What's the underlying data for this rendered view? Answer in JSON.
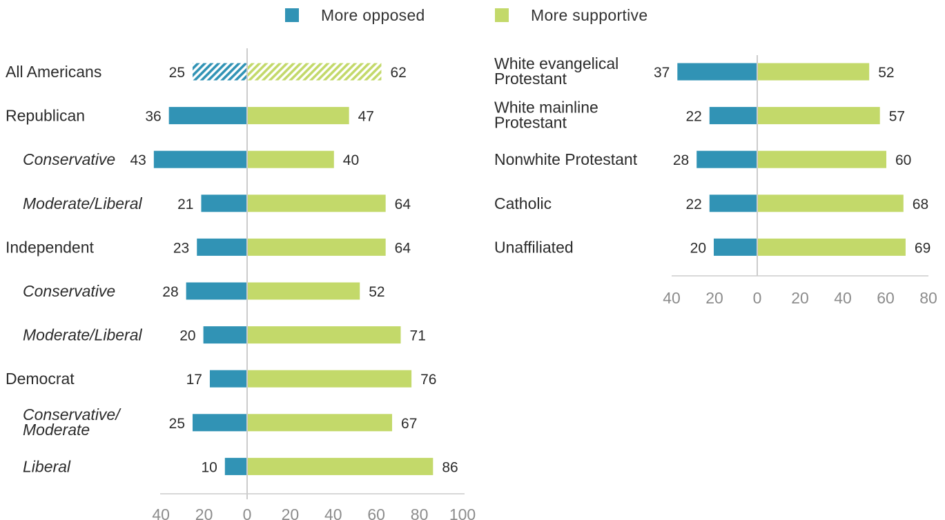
{
  "colors": {
    "opposed": "#3193b5",
    "supportive": "#c3d96a",
    "axis": "#cccccc",
    "text": "#2b2b2b",
    "tick": "#8c8c8c"
  },
  "legend": {
    "opposed_label": "More opposed",
    "supportive_label": "More supportive"
  },
  "chart_data": [
    {
      "type": "bar",
      "orientation": "horizontal-diverging",
      "categories": [
        "All Americans",
        "Republican",
        "Conservative",
        "Moderate/Liberal",
        "Independent",
        "Conservative",
        "Moderate/Liberal",
        "Democrat",
        "Conservative/\nModerate",
        "Liberal"
      ],
      "italic": [
        false,
        false,
        true,
        true,
        false,
        true,
        true,
        false,
        true,
        true
      ],
      "hatched": [
        true,
        false,
        false,
        false,
        false,
        false,
        false,
        false,
        false,
        false
      ],
      "series": [
        {
          "name": "More opposed",
          "values": [
            25,
            36,
            43,
            21,
            23,
            28,
            20,
            17,
            25,
            10
          ]
        },
        {
          "name": "More supportive",
          "values": [
            62,
            47,
            40,
            64,
            64,
            52,
            71,
            76,
            67,
            86
          ]
        }
      ],
      "xlim": [
        -40,
        100
      ],
      "xticks": [
        -40,
        -20,
        0,
        20,
        40,
        60,
        80,
        100
      ],
      "xtick_labels": [
        "40",
        "20",
        "0",
        "20",
        "40",
        "60",
        "80",
        "100"
      ]
    },
    {
      "type": "bar",
      "orientation": "horizontal-diverging",
      "categories": [
        "White evangelical\nProtestant",
        "White mainline\nProtestant",
        "Nonwhite Protestant",
        "Catholic",
        "Unaffiliated"
      ],
      "italic": [
        false,
        false,
        false,
        false,
        false
      ],
      "hatched": [
        false,
        false,
        false,
        false,
        false
      ],
      "series": [
        {
          "name": "More opposed",
          "values": [
            37,
            22,
            28,
            22,
            20
          ]
        },
        {
          "name": "More supportive",
          "values": [
            52,
            57,
            60,
            68,
            69
          ]
        }
      ],
      "xlim": [
        -40,
        80
      ],
      "xticks": [
        -40,
        -20,
        0,
        20,
        40,
        60,
        80
      ],
      "xtick_labels": [
        "40",
        "20",
        "0",
        "20",
        "40",
        "60",
        "80"
      ]
    }
  ]
}
